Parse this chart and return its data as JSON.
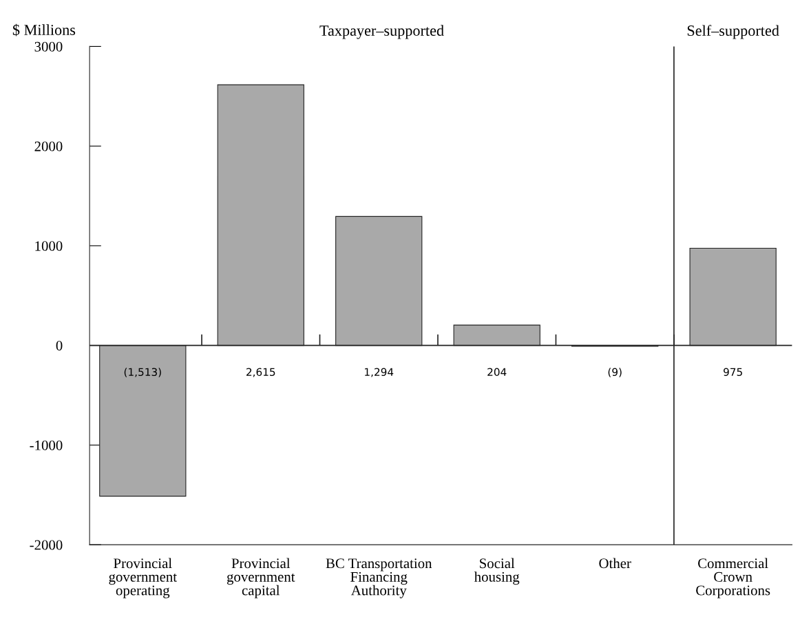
{
  "chart_data": {
    "type": "bar",
    "ylabel": "$ Millions",
    "categories": [
      "Provincial\ngovernment\noperating",
      "Provincial\ngovernment\ncapital",
      "BC Transportation\nFinancing\nAuthority",
      "Social\nhousing",
      "Other",
      "Commercial\nCrown\nCorporations"
    ],
    "values": [
      -1513,
      2615,
      1294,
      204,
      -9,
      975
    ],
    "value_labels": [
      "(1,513)",
      "2,615",
      "1,294",
      "204",
      "(9)",
      "975"
    ],
    "color": "#a9a9a9",
    "ylim": [
      -2000,
      3000
    ],
    "yticks": [
      -2000,
      -1000,
      0,
      1000,
      2000,
      3000
    ],
    "ref_lines": [
      {
        "axis": "y",
        "value": 0
      }
    ],
    "annotations": [
      "Taxpayer–supported",
      "Self–supported"
    ],
    "grid": false,
    "legend": false
  }
}
